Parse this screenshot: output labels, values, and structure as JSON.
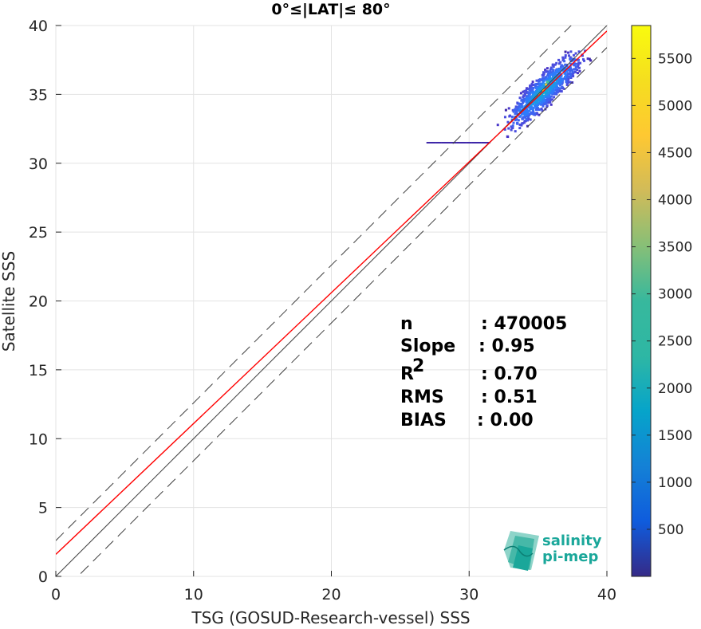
{
  "chart_data": {
    "type": "heatmap",
    "title": "0°≤|LAT|≤ 80°",
    "xlabel": "TSG (GOSUD-Research-vessel) SSS",
    "ylabel": "Satellite SSS",
    "xlim": [
      0,
      40
    ],
    "ylim": [
      0,
      40
    ],
    "xticks": [
      "0",
      "10",
      "20",
      "30",
      "40"
    ],
    "yticks": [
      "0",
      "5",
      "10",
      "15",
      "20",
      "25",
      "30",
      "35",
      "40"
    ],
    "grid": true,
    "colorbar": {
      "colormap": "parula",
      "range": [
        0,
        5850
      ],
      "ticks": [
        "500",
        "1000",
        "1500",
        "2000",
        "2500",
        "3000",
        "3500",
        "4000",
        "4500",
        "5000",
        "5500"
      ]
    },
    "lines": [
      {
        "kind": "one-to-one",
        "style": "solid",
        "color": "#404040",
        "slope": 1.0,
        "intercept": 0.0
      },
      {
        "kind": "one-to-one +/- offset",
        "style": "dashed",
        "color": "#404040",
        "slope": 1.0,
        "offsets": [
          2.6,
          -1.6
        ]
      },
      {
        "kind": "regression",
        "style": "solid",
        "color": "#ff0000",
        "slope": 0.95,
        "intercept": 1.6
      }
    ],
    "density_peak": {
      "x": 35.3,
      "y": 35.3
    },
    "stats": [
      {
        "label": "n",
        "value": ": 470005"
      },
      {
        "label": "Slope",
        "value": ": 0.95"
      },
      {
        "label": "R",
        "sup": "2",
        "value": ": 0.70"
      },
      {
        "label": "RMS",
        "value": ": 0.51"
      },
      {
        "label": "BIAS",
        "value": ": 0.00"
      }
    ]
  },
  "logo": {
    "line1": "salinity",
    "line2": "pi-mep"
  },
  "colors": {
    "regression": "#ff0000",
    "reference": "#404040",
    "logo": "#1aa79a"
  }
}
